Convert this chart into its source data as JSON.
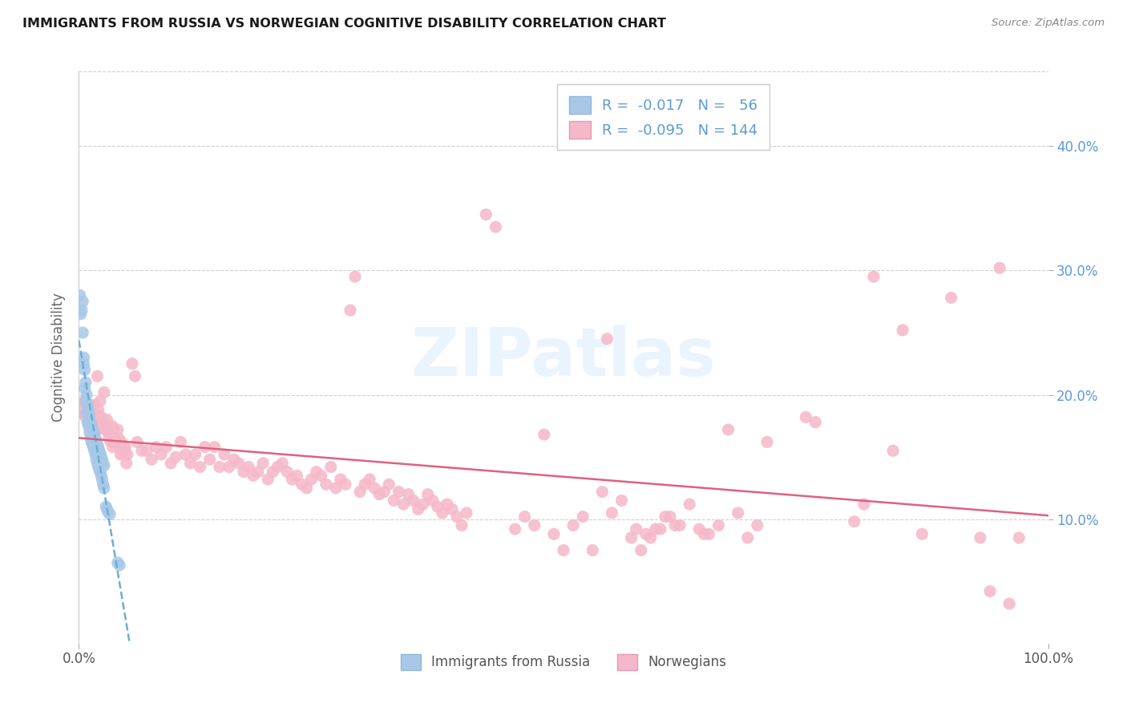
{
  "title": "IMMIGRANTS FROM RUSSIA VS NORWEGIAN COGNITIVE DISABILITY CORRELATION CHART",
  "source": "Source: ZipAtlas.com",
  "ylabel": "Cognitive Disability",
  "right_yticks": [
    "10.0%",
    "20.0%",
    "30.0%",
    "40.0%"
  ],
  "right_ytick_vals": [
    0.1,
    0.2,
    0.3,
    0.4
  ],
  "color_blue": "#a8c8e8",
  "color_pink": "#f5b8c8",
  "trendline_blue": "#6baed6",
  "trendline_pink": "#e06080",
  "background": "#ffffff",
  "xlim": [
    0.0,
    1.0
  ],
  "ylim": [
    0.0,
    0.46
  ],
  "ymax_line": 0.46,
  "blue_scatter": [
    [
      0.001,
      0.28
    ],
    [
      0.002,
      0.265
    ],
    [
      0.003,
      0.268
    ],
    [
      0.004,
      0.275
    ],
    [
      0.004,
      0.25
    ],
    [
      0.005,
      0.23
    ],
    [
      0.005,
      0.225
    ],
    [
      0.006,
      0.22
    ],
    [
      0.006,
      0.205
    ],
    [
      0.007,
      0.21
    ],
    [
      0.007,
      0.195
    ],
    [
      0.008,
      0.2
    ],
    [
      0.008,
      0.185
    ],
    [
      0.009,
      0.192
    ],
    [
      0.009,
      0.178
    ],
    [
      0.01,
      0.188
    ],
    [
      0.01,
      0.175
    ],
    [
      0.011,
      0.183
    ],
    [
      0.011,
      0.17
    ],
    [
      0.012,
      0.178
    ],
    [
      0.012,
      0.165
    ],
    [
      0.013,
      0.175
    ],
    [
      0.013,
      0.162
    ],
    [
      0.014,
      0.172
    ],
    [
      0.014,
      0.16
    ],
    [
      0.015,
      0.17
    ],
    [
      0.015,
      0.158
    ],
    [
      0.016,
      0.168
    ],
    [
      0.016,
      0.155
    ],
    [
      0.017,
      0.165
    ],
    [
      0.017,
      0.152
    ],
    [
      0.018,
      0.163
    ],
    [
      0.018,
      0.148
    ],
    [
      0.019,
      0.16
    ],
    [
      0.019,
      0.145
    ],
    [
      0.02,
      0.158
    ],
    [
      0.02,
      0.142
    ],
    [
      0.021,
      0.155
    ],
    [
      0.021,
      0.14
    ],
    [
      0.022,
      0.153
    ],
    [
      0.022,
      0.138
    ],
    [
      0.023,
      0.15
    ],
    [
      0.023,
      0.135
    ],
    [
      0.024,
      0.148
    ],
    [
      0.024,
      0.132
    ],
    [
      0.025,
      0.145
    ],
    [
      0.025,
      0.128
    ],
    [
      0.026,
      0.143
    ],
    [
      0.026,
      0.125
    ],
    [
      0.028,
      0.11
    ],
    [
      0.029,
      0.108
    ],
    [
      0.03,
      0.106
    ],
    [
      0.032,
      0.104
    ],
    [
      0.04,
      0.065
    ],
    [
      0.042,
      0.063
    ]
  ],
  "pink_scatter": [
    [
      0.002,
      0.188
    ],
    [
      0.003,
      0.185
    ],
    [
      0.004,
      0.192
    ],
    [
      0.005,
      0.188
    ],
    [
      0.006,
      0.195
    ],
    [
      0.007,
      0.182
    ],
    [
      0.008,
      0.19
    ],
    [
      0.009,
      0.185
    ],
    [
      0.01,
      0.178
    ],
    [
      0.011,
      0.192
    ],
    [
      0.012,
      0.182
    ],
    [
      0.013,
      0.178
    ],
    [
      0.014,
      0.185
    ],
    [
      0.015,
      0.175
    ],
    [
      0.016,
      0.192
    ],
    [
      0.017,
      0.185
    ],
    [
      0.018,
      0.172
    ],
    [
      0.019,
      0.215
    ],
    [
      0.02,
      0.188
    ],
    [
      0.021,
      0.182
    ],
    [
      0.022,
      0.195
    ],
    [
      0.023,
      0.182
    ],
    [
      0.024,
      0.175
    ],
    [
      0.025,
      0.178
    ],
    [
      0.026,
      0.202
    ],
    [
      0.027,
      0.172
    ],
    [
      0.028,
      0.175
    ],
    [
      0.029,
      0.18
    ],
    [
      0.03,
      0.17
    ],
    [
      0.031,
      0.165
    ],
    [
      0.032,
      0.172
    ],
    [
      0.033,
      0.162
    ],
    [
      0.034,
      0.175
    ],
    [
      0.035,
      0.158
    ],
    [
      0.036,
      0.172
    ],
    [
      0.037,
      0.165
    ],
    [
      0.038,
      0.162
    ],
    [
      0.039,
      0.162
    ],
    [
      0.04,
      0.172
    ],
    [
      0.041,
      0.165
    ],
    [
      0.042,
      0.158
    ],
    [
      0.043,
      0.152
    ],
    [
      0.044,
      0.162
    ],
    [
      0.045,
      0.155
    ],
    [
      0.046,
      0.158
    ],
    [
      0.047,
      0.152
    ],
    [
      0.048,
      0.158
    ],
    [
      0.049,
      0.145
    ],
    [
      0.05,
      0.152
    ],
    [
      0.055,
      0.225
    ],
    [
      0.058,
      0.215
    ],
    [
      0.06,
      0.162
    ],
    [
      0.065,
      0.155
    ],
    [
      0.07,
      0.155
    ],
    [
      0.075,
      0.148
    ],
    [
      0.08,
      0.158
    ],
    [
      0.085,
      0.152
    ],
    [
      0.09,
      0.158
    ],
    [
      0.095,
      0.145
    ],
    [
      0.1,
      0.15
    ],
    [
      0.105,
      0.162
    ],
    [
      0.11,
      0.152
    ],
    [
      0.115,
      0.145
    ],
    [
      0.12,
      0.152
    ],
    [
      0.125,
      0.142
    ],
    [
      0.13,
      0.158
    ],
    [
      0.135,
      0.148
    ],
    [
      0.14,
      0.158
    ],
    [
      0.145,
      0.142
    ],
    [
      0.15,
      0.152
    ],
    [
      0.155,
      0.142
    ],
    [
      0.16,
      0.148
    ],
    [
      0.165,
      0.145
    ],
    [
      0.17,
      0.138
    ],
    [
      0.175,
      0.142
    ],
    [
      0.18,
      0.135
    ],
    [
      0.185,
      0.138
    ],
    [
      0.19,
      0.145
    ],
    [
      0.195,
      0.132
    ],
    [
      0.2,
      0.138
    ],
    [
      0.205,
      0.142
    ],
    [
      0.21,
      0.145
    ],
    [
      0.215,
      0.138
    ],
    [
      0.22,
      0.132
    ],
    [
      0.225,
      0.135
    ],
    [
      0.23,
      0.128
    ],
    [
      0.235,
      0.125
    ],
    [
      0.24,
      0.132
    ],
    [
      0.245,
      0.138
    ],
    [
      0.25,
      0.135
    ],
    [
      0.255,
      0.128
    ],
    [
      0.26,
      0.142
    ],
    [
      0.265,
      0.125
    ],
    [
      0.27,
      0.132
    ],
    [
      0.275,
      0.128
    ],
    [
      0.28,
      0.268
    ],
    [
      0.285,
      0.295
    ],
    [
      0.29,
      0.122
    ],
    [
      0.295,
      0.128
    ],
    [
      0.3,
      0.132
    ],
    [
      0.305,
      0.125
    ],
    [
      0.31,
      0.12
    ],
    [
      0.315,
      0.122
    ],
    [
      0.32,
      0.128
    ],
    [
      0.325,
      0.115
    ],
    [
      0.33,
      0.122
    ],
    [
      0.335,
      0.112
    ],
    [
      0.34,
      0.12
    ],
    [
      0.345,
      0.115
    ],
    [
      0.35,
      0.108
    ],
    [
      0.355,
      0.112
    ],
    [
      0.36,
      0.12
    ],
    [
      0.365,
      0.115
    ],
    [
      0.37,
      0.11
    ],
    [
      0.375,
      0.105
    ],
    [
      0.38,
      0.112
    ],
    [
      0.385,
      0.108
    ],
    [
      0.39,
      0.102
    ],
    [
      0.395,
      0.095
    ],
    [
      0.4,
      0.105
    ],
    [
      0.42,
      0.345
    ],
    [
      0.43,
      0.335
    ],
    [
      0.45,
      0.092
    ],
    [
      0.46,
      0.102
    ],
    [
      0.47,
      0.095
    ],
    [
      0.48,
      0.168
    ],
    [
      0.49,
      0.088
    ],
    [
      0.5,
      0.075
    ],
    [
      0.51,
      0.095
    ],
    [
      0.52,
      0.102
    ],
    [
      0.53,
      0.075
    ],
    [
      0.54,
      0.122
    ],
    [
      0.545,
      0.245
    ],
    [
      0.55,
      0.105
    ],
    [
      0.56,
      0.115
    ],
    [
      0.57,
      0.085
    ],
    [
      0.575,
      0.092
    ],
    [
      0.58,
      0.075
    ],
    [
      0.585,
      0.088
    ],
    [
      0.59,
      0.085
    ],
    [
      0.595,
      0.092
    ],
    [
      0.6,
      0.092
    ],
    [
      0.605,
      0.102
    ],
    [
      0.61,
      0.102
    ],
    [
      0.615,
      0.095
    ],
    [
      0.62,
      0.095
    ],
    [
      0.63,
      0.112
    ],
    [
      0.64,
      0.092
    ],
    [
      0.645,
      0.088
    ],
    [
      0.65,
      0.088
    ],
    [
      0.66,
      0.095
    ],
    [
      0.67,
      0.172
    ],
    [
      0.68,
      0.105
    ],
    [
      0.69,
      0.085
    ],
    [
      0.7,
      0.095
    ],
    [
      0.71,
      0.162
    ],
    [
      0.75,
      0.182
    ],
    [
      0.76,
      0.178
    ],
    [
      0.8,
      0.098
    ],
    [
      0.81,
      0.112
    ],
    [
      0.82,
      0.295
    ],
    [
      0.84,
      0.155
    ],
    [
      0.85,
      0.252
    ],
    [
      0.87,
      0.088
    ],
    [
      0.9,
      0.278
    ],
    [
      0.93,
      0.085
    ],
    [
      0.94,
      0.042
    ],
    [
      0.95,
      0.302
    ],
    [
      0.96,
      0.032
    ],
    [
      0.97,
      0.085
    ]
  ]
}
